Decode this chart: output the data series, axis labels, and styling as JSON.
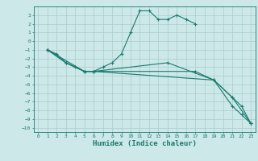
{
  "xlabel": "Humidex (Indice chaleur)",
  "ylabel": "",
  "xlim": [
    -0.5,
    23.5
  ],
  "ylim": [
    -10.5,
    4
  ],
  "background_color": "#cce8e8",
  "grid_color": "#aacccc",
  "line_color": "#1a7a6e",
  "lines": [
    {
      "x": [
        1,
        2,
        3,
        4,
        5,
        6,
        7,
        8,
        9,
        10,
        11,
        12,
        13,
        14,
        15,
        16,
        17
      ],
      "y": [
        -1,
        -1.5,
        -2.5,
        -3,
        -3.5,
        -3.5,
        -3,
        -2.5,
        -1.5,
        1,
        3.5,
        3.5,
        2.5,
        2.5,
        3,
        2.5,
        2
      ]
    },
    {
      "x": [
        1,
        3,
        5,
        6,
        19,
        21,
        23
      ],
      "y": [
        -1,
        -2.5,
        -3.5,
        -3.5,
        -4.5,
        -6.5,
        -9.5
      ]
    },
    {
      "x": [
        1,
        3,
        5,
        6,
        17,
        19,
        21,
        22,
        23
      ],
      "y": [
        -1,
        -2.5,
        -3.5,
        -3.5,
        -3.5,
        -4.5,
        -7.5,
        -8.5,
        -9.5
      ]
    },
    {
      "x": [
        1,
        5,
        6,
        14,
        19,
        21,
        22,
        23
      ],
      "y": [
        -1,
        -3.5,
        -3.5,
        -2.5,
        -4.5,
        -6.5,
        -7.5,
        -9.5
      ]
    }
  ],
  "xticks": [
    0,
    1,
    2,
    3,
    4,
    5,
    6,
    7,
    8,
    9,
    10,
    11,
    12,
    13,
    14,
    15,
    16,
    17,
    18,
    19,
    20,
    21,
    22,
    23
  ],
  "yticks": [
    3,
    2,
    1,
    0,
    -1,
    -2,
    -3,
    -4,
    -5,
    -6,
    -7,
    -8,
    -9,
    -10
  ],
  "tick_fontsize": 4.5,
  "xlabel_fontsize": 6.5,
  "title_fontsize": 6.0
}
